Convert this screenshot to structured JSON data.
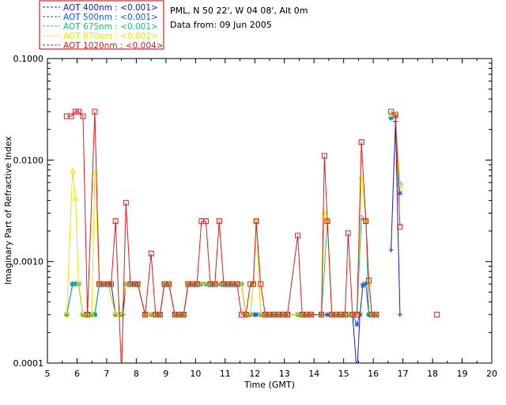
{
  "chart_data": {
    "type": "line",
    "header_lines": [
      "PML, N 50 22', W 04 08', Alt 0m",
      "Data from: 09 Jun 2005"
    ],
    "xlabel": "Time (GMT)",
    "ylabel": "Imaginary Part of Refractive Index",
    "xlim": [
      5,
      20
    ],
    "ylim": [
      0.0001,
      0.1
    ],
    "yscale": "log",
    "x_ticks": [
      5,
      6,
      7,
      8,
      9,
      10,
      11,
      12,
      13,
      14,
      15,
      16,
      17,
      18,
      19,
      20
    ],
    "x_tick_labels": [
      "5",
      "6",
      "7",
      "8",
      "9",
      "10",
      "11",
      "12",
      "13",
      "14",
      "15",
      "16",
      "17",
      "18",
      "19",
      "20"
    ],
    "y_ticks": [
      0.0001,
      0.001,
      0.01,
      0.1
    ],
    "y_tick_labels": [
      "0.0001",
      "0.0010",
      "0.0100",
      "0.1000"
    ],
    "legend": {
      "position": "top-left-outside",
      "border_color": "#cc0000"
    },
    "series": [
      {
        "name": "AOT  400nm : <0.001>",
        "color": "#2020c0",
        "marker": "plus",
        "x": [
          5.65,
          5.85,
          5.95,
          6.05,
          6.2,
          6.35,
          6.5,
          6.6,
          6.75,
          6.9,
          7.05,
          7.15,
          7.3,
          7.45,
          7.55,
          7.65,
          7.8,
          7.9,
          8.05,
          8.3,
          8.5,
          8.65,
          8.8,
          8.95,
          9.1,
          9.3,
          9.45,
          9.6,
          9.75,
          9.9,
          10.05,
          10.2,
          10.35,
          10.5,
          10.65,
          10.8,
          10.95,
          11.1,
          11.25,
          11.4,
          11.55,
          11.7,
          11.85,
          12.0,
          12.05,
          12.2,
          12.35,
          12.5,
          12.65,
          12.8,
          12.95,
          13.1,
          13.45,
          13.6,
          13.75,
          13.9,
          14.25,
          14.45,
          14.6,
          14.75,
          14.9,
          15.05,
          15.15,
          15.3,
          15.45,
          15.55,
          15.65,
          15.75,
          15.85,
          15.95,
          16.1,
          16.6,
          16.75,
          16.9
        ],
        "y": [
          0.0003,
          0.0006,
          0.0006,
          0.0006,
          0.0003,
          0.0003,
          0.0003,
          0.0003,
          0.0006,
          0.0006,
          0.0006,
          0.0006,
          0.0003,
          0.0003,
          0.0003,
          0.0006,
          0.0006,
          0.0006,
          0.0006,
          0.0003,
          0.0003,
          0.0003,
          0.0003,
          0.0006,
          0.0006,
          0.0003,
          0.0003,
          0.0003,
          0.0006,
          0.0006,
          0.0006,
          0.0006,
          0.0006,
          0.0006,
          0.0006,
          0.0006,
          0.0006,
          0.0006,
          0.0006,
          0.0006,
          0.0006,
          0.0003,
          0.0003,
          0.0003,
          0.0003,
          0.0003,
          0.0003,
          0.0003,
          0.0003,
          0.0003,
          0.0003,
          0.0003,
          0.0003,
          0.0003,
          0.0003,
          0.0003,
          0.0003,
          0.0003,
          0.0003,
          0.0003,
          0.0003,
          0.0003,
          0.0003,
          0.0003,
          8e-05,
          0.0003,
          0.0006,
          0.0006,
          0.0003,
          0.0003,
          0.0003,
          0.0013,
          0.024,
          0.0003
        ]
      },
      {
        "name": "AOT  500nm : <0.001>",
        "color": "#1060e0",
        "marker": "asterisk",
        "x": [
          5.65,
          5.85,
          5.95,
          6.05,
          6.2,
          6.35,
          6.5,
          6.6,
          6.75,
          6.9,
          7.05,
          7.3,
          7.5,
          7.65,
          7.8,
          7.95,
          8.05,
          8.3,
          8.5,
          8.65,
          8.8,
          8.95,
          9.1,
          9.3,
          9.45,
          9.6,
          9.75,
          9.9,
          10.05,
          10.2,
          10.35,
          10.5,
          10.65,
          10.8,
          10.95,
          11.1,
          11.25,
          11.4,
          11.55,
          11.7,
          11.85,
          12.0,
          12.05,
          12.2,
          12.35,
          12.5,
          12.65,
          12.8,
          12.95,
          13.1,
          13.45,
          13.6,
          13.75,
          13.9,
          14.25,
          14.45,
          14.6,
          14.75,
          14.9,
          15.05,
          15.15,
          15.3,
          15.45,
          15.55,
          15.65,
          15.75,
          15.85,
          15.95,
          16.1,
          16.6,
          16.75,
          16.9
        ],
        "y": [
          0.0003,
          0.0006,
          0.0006,
          0.0006,
          0.0003,
          0.0003,
          0.0003,
          0.0003,
          0.0006,
          0.0006,
          0.0006,
          0.0003,
          0.0003,
          0.0006,
          0.0006,
          0.0006,
          0.0006,
          0.0003,
          0.0003,
          0.0003,
          0.0003,
          0.0006,
          0.0006,
          0.0003,
          0.0003,
          0.0003,
          0.0006,
          0.0006,
          0.0006,
          0.0006,
          0.0006,
          0.0006,
          0.0006,
          0.0006,
          0.0006,
          0.0006,
          0.0006,
          0.0006,
          0.0006,
          0.0003,
          0.0003,
          0.0003,
          0.0003,
          0.0003,
          0.0003,
          0.0003,
          0.0003,
          0.0003,
          0.0003,
          0.0003,
          0.0003,
          0.0003,
          0.0003,
          0.0003,
          0.0003,
          0.0003,
          0.0003,
          0.0003,
          0.0003,
          0.0003,
          0.0003,
          0.0003,
          0.00024,
          0.0003,
          0.00058,
          0.0006,
          0.0003,
          0.0003,
          0.0003,
          0.026,
          0.027,
          0.0047
        ]
      },
      {
        "name": "AOT  675nm : <0.001>",
        "color": "#20c080",
        "marker": "diamond",
        "x": [
          5.65,
          5.85,
          5.95,
          6.05,
          6.2,
          6.35,
          6.5,
          6.6,
          6.75,
          6.9,
          7.05,
          7.3,
          7.5,
          7.65,
          7.8,
          7.95,
          8.05,
          8.3,
          8.5,
          8.65,
          8.8,
          8.95,
          9.1,
          9.3,
          9.45,
          9.6,
          9.75,
          9.9,
          10.05,
          10.2,
          10.35,
          10.5,
          10.65,
          10.8,
          10.95,
          11.1,
          11.25,
          11.4,
          11.55,
          11.7,
          11.85,
          11.95,
          12.05,
          12.2,
          12.35,
          12.5,
          12.65,
          12.8,
          12.95,
          13.1,
          13.45,
          13.6,
          13.75,
          13.9,
          14.25,
          14.45,
          14.6,
          14.75,
          14.9,
          15.05,
          15.15,
          15.3,
          15.45,
          15.6,
          15.75,
          15.85,
          15.95,
          16.1,
          16.6,
          16.75,
          16.9
        ],
        "y": [
          0.0003,
          0.0006,
          0.0006,
          0.0006,
          0.0003,
          0.0003,
          0.0003,
          0.0003,
          0.0006,
          0.0006,
          0.0006,
          0.0003,
          0.0003,
          0.0006,
          0.0006,
          0.0006,
          0.0006,
          0.0003,
          0.0003,
          0.0003,
          0.0003,
          0.0006,
          0.0006,
          0.0003,
          0.0003,
          0.0003,
          0.0006,
          0.0006,
          0.0006,
          0.0006,
          0.0006,
          0.0006,
          0.0006,
          0.0006,
          0.0006,
          0.0006,
          0.0006,
          0.0006,
          0.0006,
          0.0003,
          0.0003,
          0.0006,
          0.0025,
          0.0003,
          0.0003,
          0.0003,
          0.0003,
          0.0003,
          0.0003,
          0.0003,
          0.0003,
          0.0003,
          0.0003,
          0.0003,
          0.0003,
          0.0025,
          0.0003,
          0.0003,
          0.0003,
          0.0003,
          0.0003,
          0.0003,
          0.0003,
          0.0027,
          0.0025,
          0.0003,
          0.0003,
          0.0003,
          0.026,
          0.027,
          0.0058
        ]
      },
      {
        "name": "AOT  870nm : <0.002>",
        "color": "#e8e800",
        "marker": "triangle",
        "x": [
          5.65,
          5.85,
          5.95,
          6.05,
          6.2,
          6.35,
          6.5,
          6.6,
          6.75,
          6.9,
          7.05,
          7.3,
          7.5,
          7.65,
          7.8,
          7.95,
          8.05,
          8.3,
          8.5,
          8.65,
          8.8,
          8.95,
          9.1,
          9.3,
          9.45,
          9.6,
          9.75,
          9.9,
          10.05,
          10.2,
          10.35,
          10.5,
          10.65,
          10.8,
          10.95,
          11.1,
          11.25,
          11.4,
          11.55,
          11.7,
          11.85,
          11.95,
          12.05,
          12.2,
          12.35,
          12.5,
          12.65,
          12.8,
          12.95,
          13.1,
          13.45,
          13.6,
          13.75,
          13.9,
          14.25,
          14.35,
          14.45,
          14.6,
          14.75,
          14.9,
          15.05,
          15.15,
          15.3,
          15.45,
          15.6,
          15.75,
          15.85,
          15.95,
          16.1,
          16.6,
          16.75,
          16.9
        ],
        "y": [
          0.0003,
          0.0078,
          0.0042,
          0.0006,
          0.0003,
          0.0003,
          0.0003,
          0.0075,
          0.0006,
          0.0006,
          0.0006,
          0.0003,
          0.0003,
          0.0006,
          0.0006,
          0.0006,
          0.0006,
          0.0003,
          0.0003,
          0.0003,
          0.0003,
          0.0006,
          0.0006,
          0.0003,
          0.0003,
          0.0003,
          0.0006,
          0.0006,
          0.0006,
          0.0006,
          0.0006,
          0.0006,
          0.0006,
          0.0006,
          0.0006,
          0.0006,
          0.0006,
          0.0006,
          0.0006,
          0.0003,
          0.0003,
          0.0006,
          0.0025,
          0.0003,
          0.0003,
          0.0003,
          0.0003,
          0.0003,
          0.0003,
          0.0003,
          0.0003,
          0.0003,
          0.0003,
          0.0003,
          0.0003,
          0.0031,
          0.0025,
          0.0003,
          0.0003,
          0.0003,
          0.0003,
          0.0003,
          0.0003,
          0.0003,
          0.0068,
          0.0025,
          0.0006,
          0.0003,
          0.0003,
          0.028,
          0.028,
          0.0055
        ]
      },
      {
        "name": "AOT 1020nm : <0.004>",
        "color": "#e02020",
        "marker": "square",
        "x": [
          5.65,
          5.8,
          5.95,
          6.05,
          6.2,
          6.35,
          6.6,
          6.75,
          6.9,
          7.05,
          7.15,
          7.3,
          7.5,
          7.65,
          7.8,
          7.95,
          8.05,
          8.3,
          8.5,
          8.65,
          8.8,
          8.95,
          9.1,
          9.3,
          9.45,
          9.6,
          9.75,
          9.9,
          10.05,
          10.2,
          10.35,
          10.5,
          10.65,
          10.8,
          10.95,
          11.1,
          11.25,
          11.4,
          11.55,
          11.7,
          11.85,
          11.95,
          12.05,
          12.2,
          12.35,
          12.5,
          12.65,
          12.8,
          12.95,
          13.1,
          13.45,
          13.6,
          13.75,
          13.9,
          14.25,
          14.35,
          14.45,
          14.6,
          14.75,
          14.9,
          15.05,
          15.15,
          15.3,
          15.45,
          15.6,
          15.75,
          15.85,
          15.95,
          16.1,
          16.6,
          16.75,
          16.9,
          18.15
        ],
        "y": [
          0.027,
          0.027,
          0.03,
          0.03,
          0.027,
          0.0003,
          0.03,
          0.0006,
          0.0006,
          0.0006,
          0.0006,
          0.0025,
          8e-05,
          0.0038,
          0.0006,
          0.0006,
          0.0006,
          0.0003,
          0.0012,
          0.0003,
          0.0003,
          0.0006,
          0.0006,
          0.0003,
          0.0003,
          0.0003,
          0.0006,
          0.0006,
          0.0006,
          0.0025,
          0.0025,
          0.0006,
          0.0006,
          0.0025,
          0.0006,
          0.0006,
          0.0006,
          0.0006,
          0.0003,
          0.0003,
          0.0006,
          0.0006,
          0.0025,
          0.0006,
          0.0003,
          0.0003,
          0.0003,
          0.0003,
          0.0003,
          0.0003,
          0.0018,
          0.0003,
          0.0003,
          0.0003,
          0.0003,
          0.011,
          0.0025,
          0.0003,
          0.0003,
          0.0003,
          0.0003,
          0.0019,
          0.0003,
          0.0003,
          0.015,
          0.0025,
          0.00065,
          0.0003,
          0.0003,
          0.03,
          0.028,
          0.0022,
          0.0003
        ]
      }
    ]
  }
}
